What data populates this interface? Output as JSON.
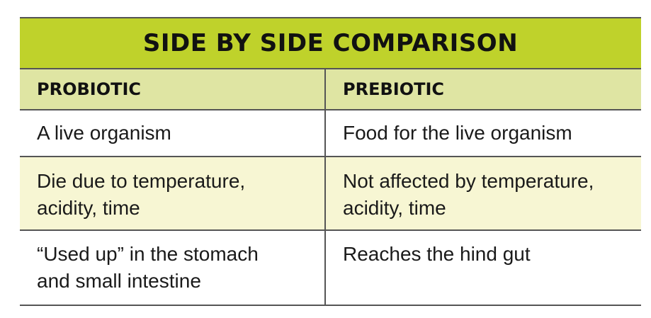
{
  "title": "SIDE BY SIDE COMPARISON",
  "columns": [
    "PROBIOTIC",
    "PREBIOTIC"
  ],
  "rows": [
    {
      "probiotic": [
        "A live organism"
      ],
      "prebiotic": [
        "Food for the live organism"
      ]
    },
    {
      "probiotic": [
        "Die due to temperature,",
        "acidity, time"
      ],
      "prebiotic": [
        "Not affected by temperature,",
        "acidity, time"
      ]
    },
    {
      "probiotic": [
        "“Used up” in the stomach",
        "and small intestine"
      ],
      "prebiotic": [
        "Reaches the hind gut"
      ]
    }
  ],
  "colors": {
    "title_bar": "#bfd22b",
    "header_row": "#dfe5a3",
    "highlight_row": "#f7f6d3",
    "rule": "#555555"
  }
}
